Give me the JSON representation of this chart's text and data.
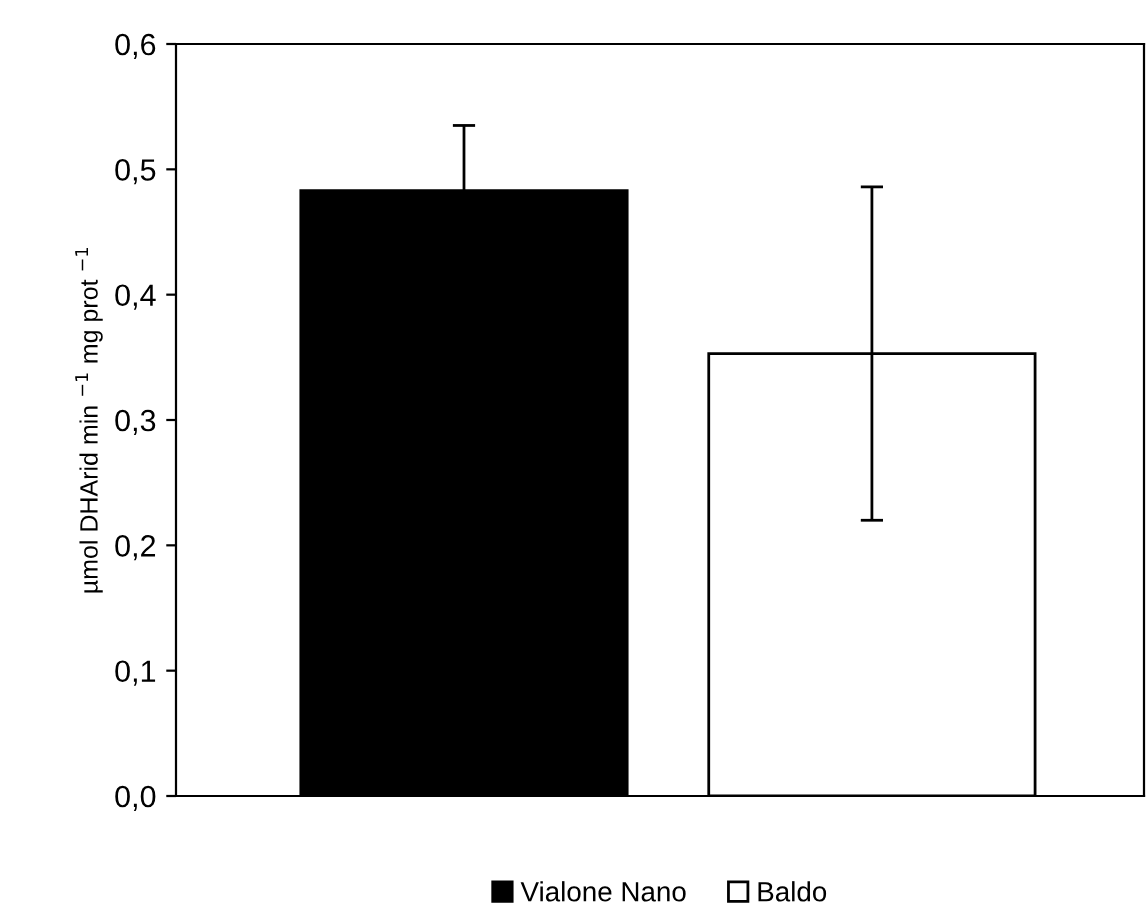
{
  "chart_data": {
    "type": "bar",
    "ylabel": "µmol DHArid min $^{−1}$ mg prot $^{−1}$",
    "categories": [
      null,
      null
    ],
    "series": [
      {
        "name": "Vialone Nano",
        "color": "#000000",
        "values": [
          0.483,
          null
        ],
        "errors": [
          0.052,
          null
        ]
      },
      {
        "name": "Baldo",
        "color": "#ffffff",
        "values": [
          null,
          0.353
        ],
        "errors": [
          null,
          0.133
        ]
      }
    ],
    "ylim": [
      0,
      0.6
    ],
    "yticks": [
      {
        "value": 0,
        "label": "0,0"
      },
      {
        "value": 0.1,
        "label": "0,1"
      },
      {
        "value": 0.2,
        "label": "0,2"
      },
      {
        "value": 0.3,
        "label": "0,3"
      },
      {
        "value": 0.4,
        "label": "0,4"
      },
      {
        "value": 0.5,
        "label": "0,5"
      },
      {
        "value": 0.6,
        "label": "0,6"
      }
    ],
    "grid": false,
    "legend": "bottom",
    "tick_labels": "y"
  }
}
